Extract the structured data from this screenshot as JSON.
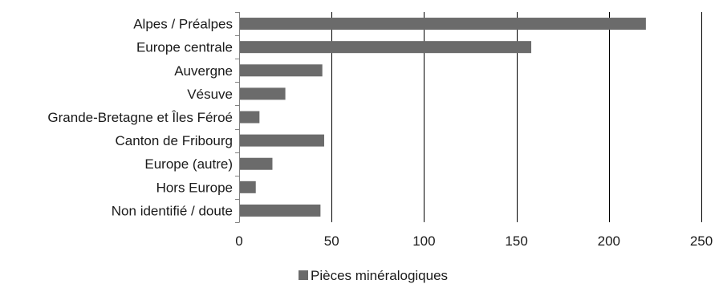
{
  "colors": {
    "bar": "#6b6b6b",
    "grid": "#000000",
    "axis": "#808080",
    "text": "#1a1a1a",
    "background": "#ffffff"
  },
  "chart_data": {
    "type": "bar",
    "orientation": "horizontal",
    "categories": [
      "Alpes / Préalpes",
      "Europe centrale",
      "Auvergne",
      "Vésuve",
      "Grande-Bretagne et Îles Féroé",
      "Canton de Fribourg",
      "Europe (autre)",
      "Hors Europe",
      "Non identifié / doute"
    ],
    "series": [
      {
        "name": "Pièces minéralogiques",
        "values": [
          220,
          158,
          45,
          25,
          11,
          46,
          18,
          9,
          44
        ]
      }
    ],
    "xlim": [
      0,
      250
    ],
    "xticks": [
      0,
      50,
      100,
      150,
      200,
      250
    ],
    "grid": true,
    "legend_position": "bottom"
  }
}
